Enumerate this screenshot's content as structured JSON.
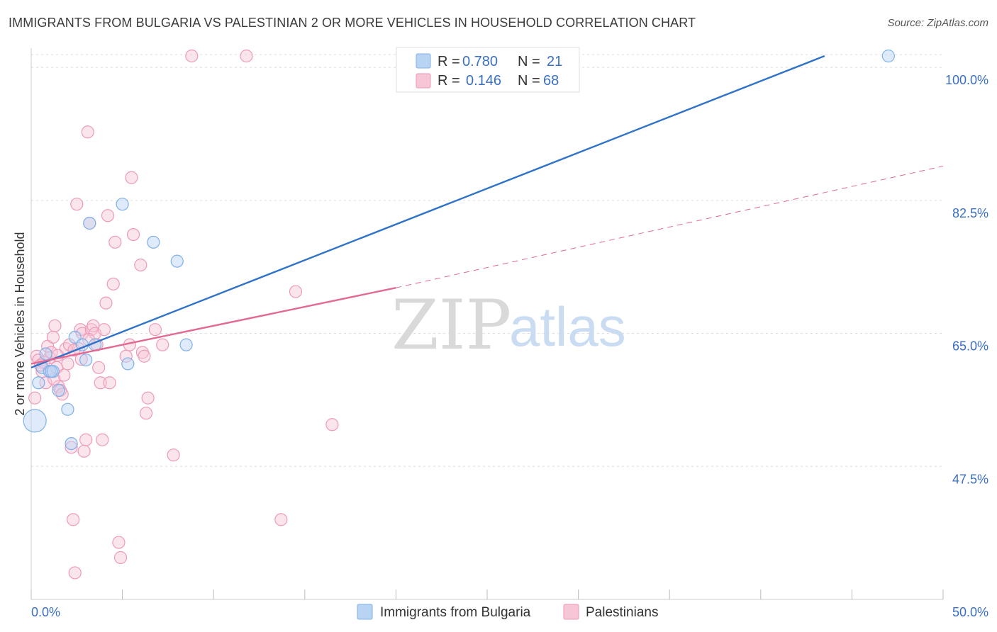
{
  "title": "IMMIGRANTS FROM BULGARIA VS PALESTINIAN 2 OR MORE VEHICLES IN HOUSEHOLD CORRELATION CHART",
  "source": "Source: ZipAtlas.com",
  "watermark": {
    "zip": "ZIP",
    "atlas": "atlas"
  },
  "colors": {
    "blue": "#7fb0e8",
    "blue_fill": "#b9d3f3",
    "blue_line": "#2f72c9",
    "pink": "#ee9ab7",
    "pink_fill": "#f7c6d6",
    "pink_line": "#e36892",
    "grid": "#dddddd",
    "tick": "#3a6fc4"
  },
  "chart_data": {
    "type": "scatter",
    "title": "IMMIGRANTS FROM BULGARIA VS PALESTINIAN 2 OR MORE VEHICLES IN HOUSEHOLD CORRELATION CHART",
    "xlabel": "",
    "ylabel": "2 or more Vehicles in Household",
    "xlim": [
      0,
      50
    ],
    "ylim": [
      30,
      101.5
    ],
    "x_ticks": [
      "0.0%",
      "50.0%"
    ],
    "y_ticks": [
      {
        "value": 100,
        "label": "100.0%"
      },
      {
        "value": 82.5,
        "label": "82.5%"
      },
      {
        "value": 65,
        "label": "65.0%"
      },
      {
        "value": 47.5,
        "label": "47.5%"
      }
    ],
    "legend": [
      {
        "series": "Immigrants from Bulgaria",
        "r_label": "R =",
        "r": "0.780",
        "n_label": "N =",
        "n": "21"
      },
      {
        "series": "Palestinians",
        "r_label": "R =",
        "r": "0.146",
        "n_label": "N =",
        "n": "68"
      }
    ],
    "series": [
      {
        "name": "Immigrants from Bulgaria",
        "color": "#7fb0e8",
        "trend": {
          "x0": 0,
          "y0": 60.5,
          "x1": 43.5,
          "y1": 101.5
        },
        "points": [
          {
            "x": 0.2,
            "y": 53.5,
            "big": true
          },
          {
            "x": 0.4,
            "y": 58.5
          },
          {
            "x": 0.6,
            "y": 60.5
          },
          {
            "x": 0.8,
            "y": 62.3
          },
          {
            "x": 1.0,
            "y": 60.0
          },
          {
            "x": 1.2,
            "y": 60.0
          },
          {
            "x": 1.5,
            "y": 57.5
          },
          {
            "x": 2.0,
            "y": 55.0
          },
          {
            "x": 2.2,
            "y": 50.5
          },
          {
            "x": 2.4,
            "y": 64.5
          },
          {
            "x": 2.8,
            "y": 63.5
          },
          {
            "x": 3.0,
            "y": 61.5
          },
          {
            "x": 3.2,
            "y": 79.5
          },
          {
            "x": 3.5,
            "y": 63.5
          },
          {
            "x": 5.0,
            "y": 82.0
          },
          {
            "x": 5.3,
            "y": 61.0
          },
          {
            "x": 6.7,
            "y": 77.0
          },
          {
            "x": 8.0,
            "y": 74.5
          },
          {
            "x": 8.5,
            "y": 63.5
          },
          {
            "x": 47.0,
            "y": 101.5
          },
          {
            "x": 1.1,
            "y": 60.0
          }
        ]
      },
      {
        "name": "Palestinians",
        "color": "#ee9ab7",
        "trend_solid": {
          "x0": 0,
          "y0": 61.0,
          "x1": 20,
          "y1": 71.0
        },
        "trend_dashed": {
          "x0": 20,
          "y0": 71.0,
          "x1": 50,
          "y1": 87.0
        },
        "points": [
          {
            "x": 0.2,
            "y": 56.5
          },
          {
            "x": 0.3,
            "y": 62.0
          },
          {
            "x": 0.4,
            "y": 61.5
          },
          {
            "x": 0.6,
            "y": 60.0
          },
          {
            "x": 0.8,
            "y": 58.5
          },
          {
            "x": 0.9,
            "y": 63.3
          },
          {
            "x": 1.0,
            "y": 61.8
          },
          {
            "x": 1.1,
            "y": 62.5
          },
          {
            "x": 1.2,
            "y": 64.5
          },
          {
            "x": 1.3,
            "y": 66.0
          },
          {
            "x": 1.4,
            "y": 60.5
          },
          {
            "x": 1.5,
            "y": 58.0
          },
          {
            "x": 1.6,
            "y": 57.5
          },
          {
            "x": 1.7,
            "y": 57.0
          },
          {
            "x": 1.8,
            "y": 59.5
          },
          {
            "x": 1.9,
            "y": 63.0
          },
          {
            "x": 2.0,
            "y": 61.0
          },
          {
            "x": 2.1,
            "y": 63.5
          },
          {
            "x": 2.2,
            "y": 50.0
          },
          {
            "x": 2.3,
            "y": 40.5
          },
          {
            "x": 2.4,
            "y": 33.5
          },
          {
            "x": 2.5,
            "y": 82.0
          },
          {
            "x": 2.6,
            "y": 63.0
          },
          {
            "x": 2.7,
            "y": 65.5
          },
          {
            "x": 2.8,
            "y": 65.0
          },
          {
            "x": 2.9,
            "y": 49.5
          },
          {
            "x": 3.0,
            "y": 51.0
          },
          {
            "x": 3.1,
            "y": 91.5
          },
          {
            "x": 3.2,
            "y": 79.5
          },
          {
            "x": 3.3,
            "y": 65.5
          },
          {
            "x": 3.4,
            "y": 66.0
          },
          {
            "x": 3.5,
            "y": 65.0
          },
          {
            "x": 3.6,
            "y": 63.5
          },
          {
            "x": 3.7,
            "y": 60.5
          },
          {
            "x": 3.8,
            "y": 58.5
          },
          {
            "x": 3.9,
            "y": 51.0
          },
          {
            "x": 4.0,
            "y": 65.5
          },
          {
            "x": 4.1,
            "y": 69.0
          },
          {
            "x": 4.2,
            "y": 80.5
          },
          {
            "x": 4.3,
            "y": 58.5
          },
          {
            "x": 4.5,
            "y": 71.5
          },
          {
            "x": 4.6,
            "y": 77.0
          },
          {
            "x": 4.8,
            "y": 37.5
          },
          {
            "x": 4.9,
            "y": 35.5
          },
          {
            "x": 5.2,
            "y": 62.0
          },
          {
            "x": 5.4,
            "y": 63.5
          },
          {
            "x": 5.5,
            "y": 85.5
          },
          {
            "x": 5.6,
            "y": 78.0
          },
          {
            "x": 6.0,
            "y": 74.0
          },
          {
            "x": 6.1,
            "y": 62.5
          },
          {
            "x": 6.2,
            "y": 62.0
          },
          {
            "x": 6.3,
            "y": 54.5
          },
          {
            "x": 6.4,
            "y": 56.5
          },
          {
            "x": 6.8,
            "y": 65.5
          },
          {
            "x": 7.2,
            "y": 63.5
          },
          {
            "x": 7.8,
            "y": 49.0
          },
          {
            "x": 8.8,
            "y": 101.5
          },
          {
            "x": 11.8,
            "y": 101.5
          },
          {
            "x": 13.7,
            "y": 40.5
          },
          {
            "x": 14.5,
            "y": 70.5
          },
          {
            "x": 16.5,
            "y": 53.0
          },
          {
            "x": 0.5,
            "y": 60.8
          },
          {
            "x": 1.25,
            "y": 59.0
          },
          {
            "x": 2.35,
            "y": 62.8
          },
          {
            "x": 3.15,
            "y": 64.2
          },
          {
            "x": 0.7,
            "y": 61.2
          },
          {
            "x": 1.45,
            "y": 62.1
          },
          {
            "x": 2.75,
            "y": 61.6
          }
        ]
      }
    ]
  }
}
